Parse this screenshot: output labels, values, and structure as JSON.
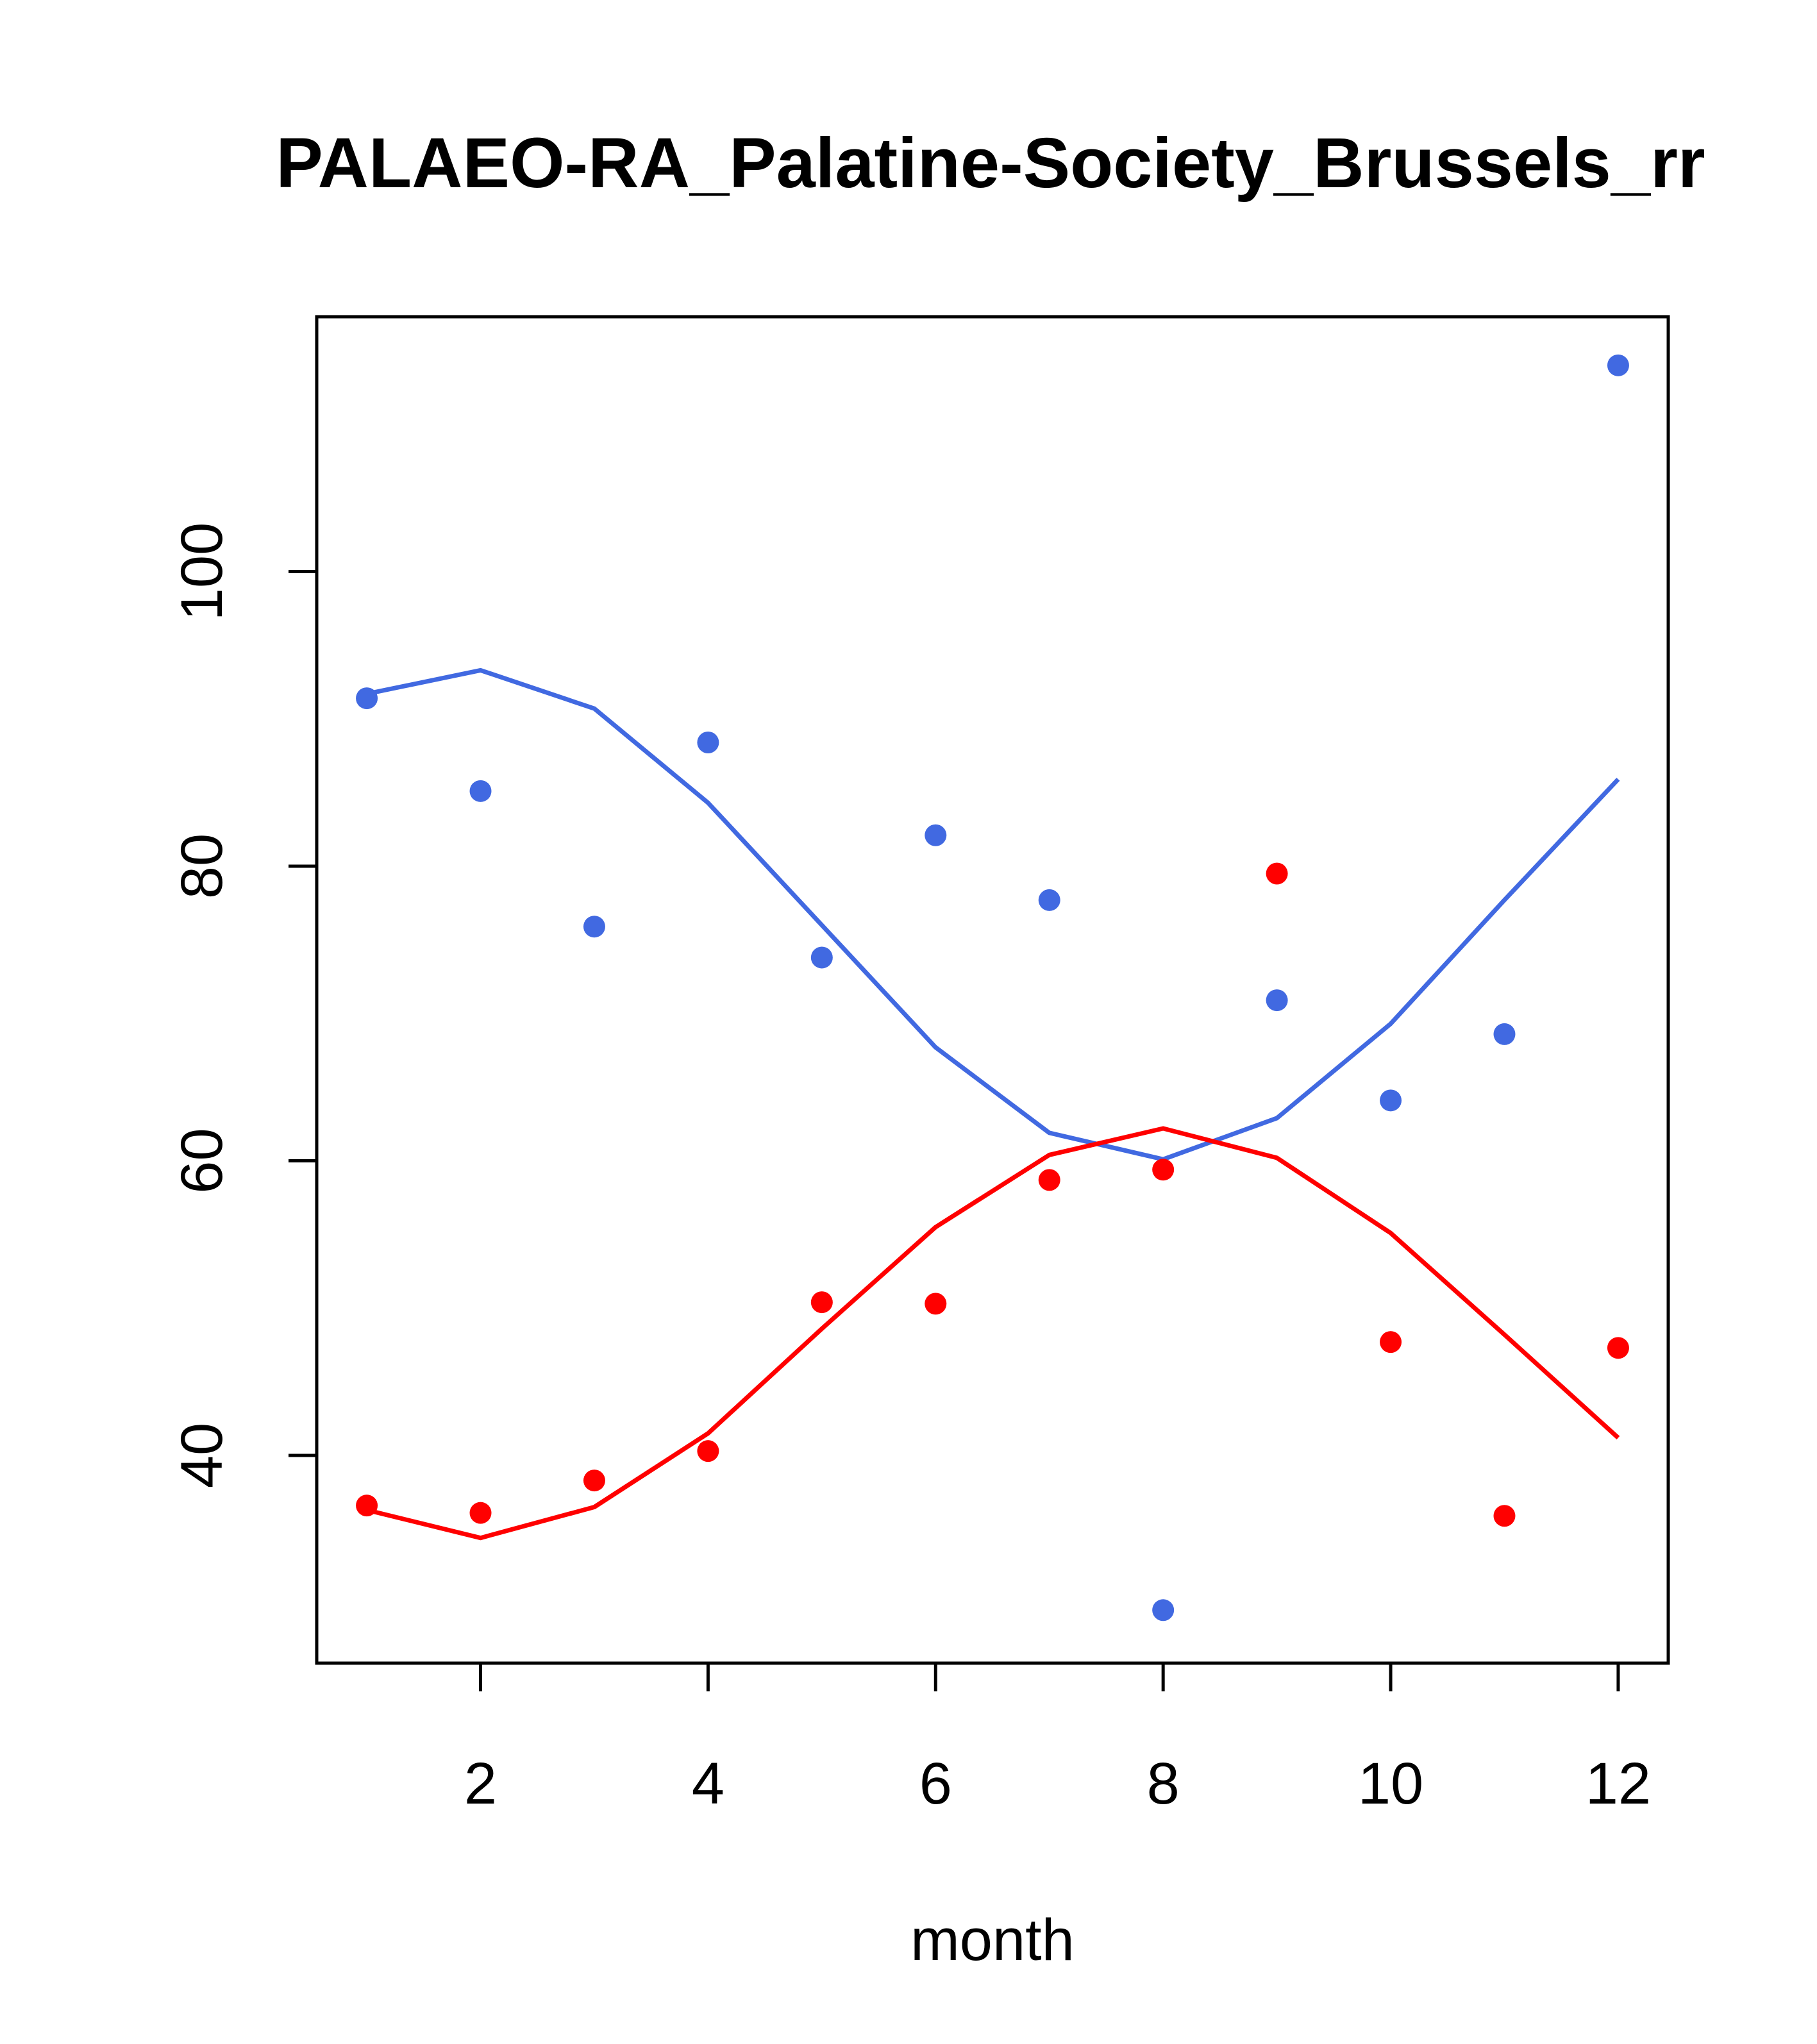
{
  "chart_data": {
    "type": "line",
    "title": "PALAEO-RA_Palatine-Society_Brussels_rr",
    "xlabel": "month",
    "ylabel": "",
    "xlim": [
      0.56,
      12.44
    ],
    "ylim": [
      25.9,
      117.3
    ],
    "x_ticks": [
      2,
      4,
      6,
      8,
      10,
      12
    ],
    "y_ticks": [
      40,
      60,
      80,
      100
    ],
    "x": [
      1,
      2,
      3,
      4,
      5,
      6,
      7,
      8,
      9,
      10,
      11,
      12
    ],
    "series": [
      {
        "color": "#4169E1",
        "points": [
          91.4,
          85.1,
          75.9,
          88.4,
          73.8,
          82.1,
          77.7,
          29.5,
          70.9,
          64.1,
          68.6,
          114.0
        ],
        "line": [
          91.7,
          93.3,
          90.7,
          84.3,
          76.0,
          67.7,
          61.9,
          60.1,
          62.9,
          69.3,
          77.7,
          85.9
        ]
      },
      {
        "color": "#FF0000",
        "points": [
          36.6,
          36.1,
          38.3,
          40.3,
          50.4,
          50.3,
          58.7,
          59.4,
          79.5,
          47.7,
          35.9,
          47.3
        ],
        "line": [
          36.3,
          34.4,
          36.5,
          41.5,
          48.6,
          55.5,
          60.4,
          62.2,
          60.2,
          55.1,
          48.2,
          41.2
        ]
      }
    ]
  }
}
